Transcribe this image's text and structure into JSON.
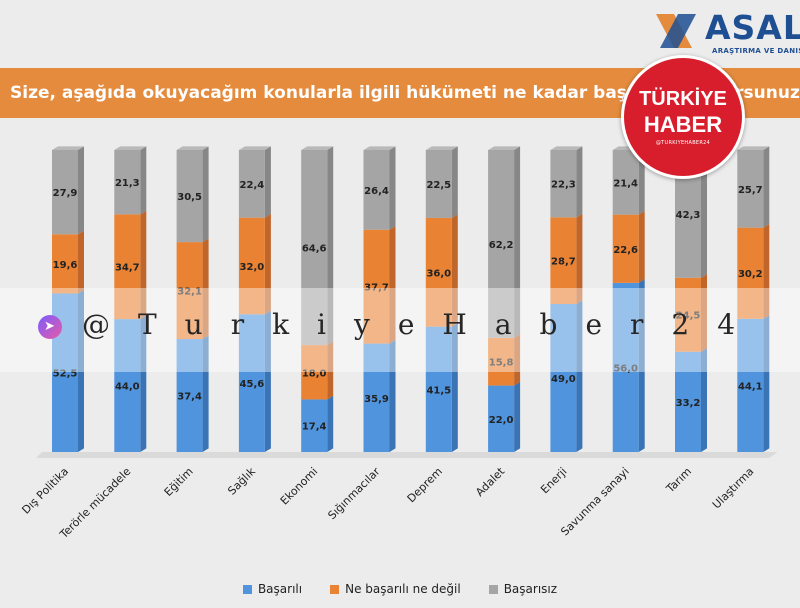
{
  "brand": {
    "name": "ASAL",
    "subtitle": "ARAŞTIRMA VE DANIŞMANLIK"
  },
  "title": "Size, aşağıda okuyacağım konularla ilgili hükümeti ne kadar başarılı buluyorsunuz?",
  "badge": {
    "line1": "TÜRKİYE",
    "line2": "HABER",
    "line3": "@TURKIYEHABER24",
    "color": "#d81e2c"
  },
  "watermark": {
    "text": "@TurkiyeHaber24",
    "icon": "telegram-icon"
  },
  "colors": {
    "basarili": "#4f94dd",
    "orta": "#e98233",
    "basarisiz": "#a5a5a5",
    "title_bar": "#e48b3e"
  },
  "chart_data": {
    "type": "bar",
    "stacked": true,
    "title": "Size, aşağıda okuyacağım konularla ilgili hükümeti ne kadar başarılı buluyorsunuz?",
    "categories": [
      "Dış Politika",
      "Terörle mücadele",
      "Eğitim",
      "Sağlık",
      "Ekonomi",
      "Sığınmacılar",
      "Deprem",
      "Adalet",
      "Enerji",
      "Savunma sanayi",
      "Tarım",
      "Ulaştırma"
    ],
    "series": [
      {
        "name": "Başarılı",
        "values": [
          52.5,
          44.0,
          37.4,
          45.6,
          17.4,
          35.9,
          41.5,
          22.0,
          49.0,
          56.0,
          33.2,
          44.1
        ],
        "labels": [
          "52,5",
          "44,0",
          "37,4",
          "45,6",
          "17,4",
          "35,9",
          "41,5",
          "22,0",
          "49,0",
          "56,0",
          "33,2",
          "44,1"
        ]
      },
      {
        "name": "Ne başarılı ne değil",
        "values": [
          19.6,
          34.7,
          32.1,
          32.0,
          18.0,
          37.7,
          36.0,
          15.8,
          28.7,
          22.6,
          24.5,
          30.2
        ],
        "labels": [
          "19,6",
          "34,7",
          "32,1",
          "32,0",
          "18,0",
          "37,7",
          "36,0",
          "15,8",
          "28,7",
          "22,6",
          "24,5",
          "30,2"
        ]
      },
      {
        "name": "Başarısız",
        "values": [
          27.9,
          21.3,
          30.5,
          22.4,
          64.6,
          26.4,
          22.5,
          62.2,
          22.3,
          21.4,
          42.3,
          25.7
        ],
        "labels": [
          "27,9",
          "21,3",
          "30,5",
          "22,4",
          "64,6",
          "26,4",
          "22,5",
          "62,2",
          "22,3",
          "21,4",
          "42,3",
          "25,7"
        ]
      }
    ],
    "xlabel": "",
    "ylabel": "",
    "ylim": [
      0,
      100
    ],
    "grid": false,
    "legend": "bottom"
  }
}
